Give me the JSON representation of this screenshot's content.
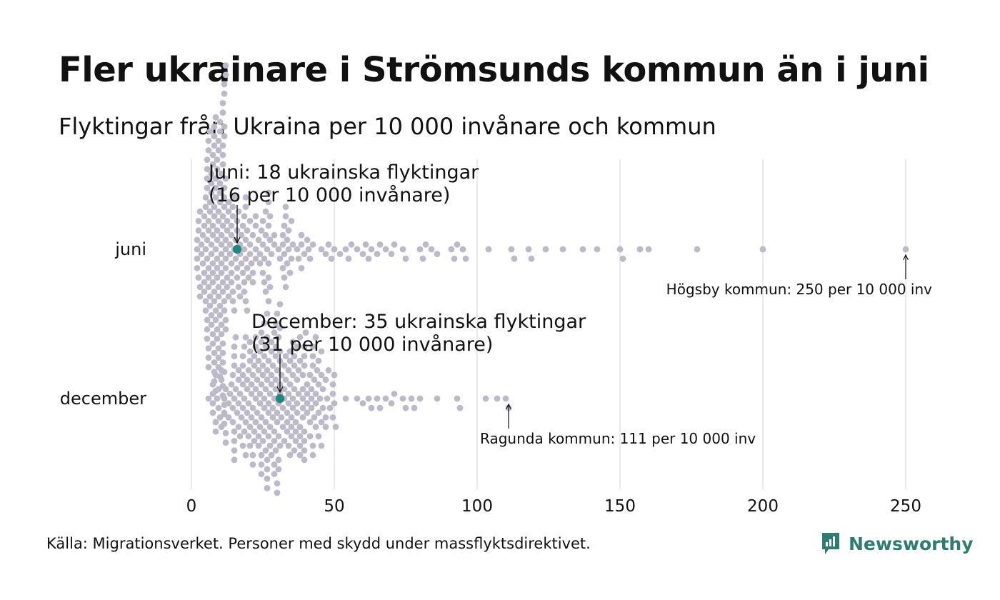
{
  "title": "Fler ukrainare i Strömsunds kommun än i juni",
  "subtitle": "Flyktingar från Ukraina per 10 000 invånare och kommun",
  "source": "Källa: Migrationsverket. Personer med skydd under massflyktsdirektivet.",
  "brand": {
    "name": "Newsworthy",
    "icon": "newsworthy-logo-icon",
    "color": "#2e7c72"
  },
  "colors": {
    "dot": "#bcbac9",
    "highlight": "#23867d",
    "grid": "#d6d6d6",
    "text": "#111111"
  },
  "chart_data": {
    "type": "scatter",
    "subtype": "beeswarm",
    "xlim": [
      0,
      250
    ],
    "x_ticks": [
      0,
      50,
      100,
      150,
      200,
      250
    ],
    "grid": true,
    "categories": [
      "juni",
      "december"
    ],
    "series": [
      {
        "name": "juni",
        "bulk": {
          "count": 270,
          "min": 0,
          "max": 46,
          "mode": 12
        },
        "outliers": [
          47,
          48,
          49,
          50,
          52,
          54,
          55,
          56,
          58,
          60,
          61,
          62,
          63,
          65,
          66,
          68,
          70,
          71,
          74,
          75,
          80,
          81,
          82,
          84,
          86,
          91,
          92,
          93,
          95,
          96,
          104,
          112,
          113,
          118,
          119,
          124,
          130,
          137,
          142,
          150,
          151,
          157,
          160,
          177,
          200,
          250
        ],
        "highlight": {
          "value": 16,
          "label_line1": "Juni: 18 ukrainska flyktingar",
          "label_line2": "(16 per 10 000 invånare)"
        },
        "extreme": {
          "value": 250,
          "label": "Högsby kommun: 250 per 10 000 inv"
        }
      },
      {
        "name": "december",
        "bulk": {
          "count": 270,
          "min": 4,
          "max": 57,
          "mode": 28
        },
        "outliers": [
          58,
          60,
          62,
          63,
          65,
          66,
          68,
          70,
          71,
          74,
          75,
          77,
          78,
          80,
          86,
          93,
          94,
          103,
          107,
          110,
          111
        ],
        "highlight": {
          "value": 31,
          "label_line1": "December: 35 ukrainska flyktingar",
          "label_line2": "(31 per 10 000 invånare)"
        },
        "extreme": {
          "value": 111,
          "label": "Ragunda kommun: 111 per 10 000 inv"
        }
      }
    ]
  }
}
